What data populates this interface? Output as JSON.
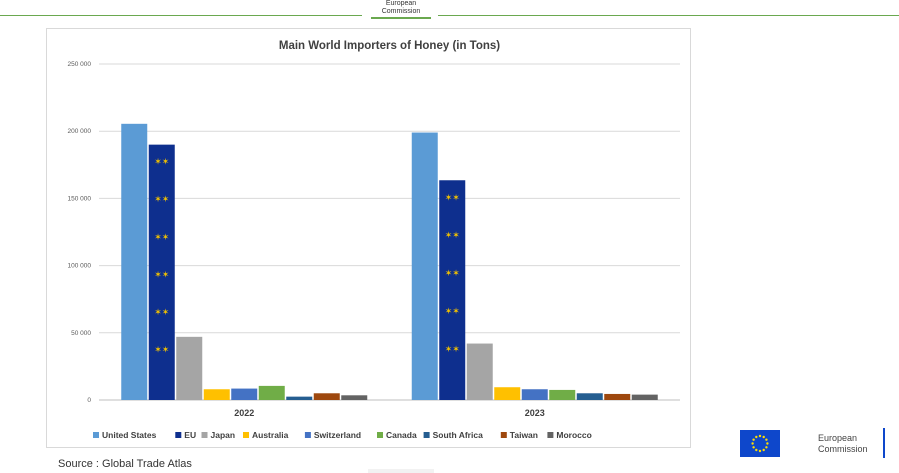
{
  "header": {
    "brand_line1": "European",
    "brand_line2": "Commission"
  },
  "chart_data": {
    "type": "bar",
    "title": "Main World Importers of Honey (in Tons)",
    "categories": [
      "2022",
      "2023"
    ],
    "series": [
      {
        "name": "United States",
        "color": "#5b9bd5",
        "values": [
          205500,
          199000
        ]
      },
      {
        "name": "EU",
        "color": "#0e2f8e",
        "values": [
          190000,
          163500
        ]
      },
      {
        "name": "Japan",
        "color": "#a5a5a5",
        "values": [
          47000,
          42000
        ]
      },
      {
        "name": "Australia",
        "color": "#ffc000",
        "values": [
          8000,
          9500
        ]
      },
      {
        "name": "Switzerland",
        "color": "#4472c4",
        "values": [
          8500,
          8000
        ]
      },
      {
        "name": "Canada",
        "color": "#70ad47",
        "values": [
          10500,
          7500
        ]
      },
      {
        "name": "South Africa",
        "color": "#255e91",
        "values": [
          2500,
          5000
        ]
      },
      {
        "name": "Taiwan",
        "color": "#9e480e",
        "values": [
          5000,
          4500
        ]
      },
      {
        "name": "Morocco",
        "color": "#636363",
        "values": [
          3500,
          4000
        ]
      }
    ],
    "ylim": [
      0,
      250000
    ],
    "yticks": [
      0,
      50000,
      100000,
      150000,
      200000,
      250000
    ],
    "ytick_labels": [
      "0",
      "50 000",
      "100 000",
      "150 000",
      "200 000",
      "250 000"
    ],
    "grid": true,
    "legend_position": "bottom"
  },
  "source": "Source : Global Trade Atlas",
  "footer_logo": {
    "line1": "European",
    "line2": "Commission"
  }
}
